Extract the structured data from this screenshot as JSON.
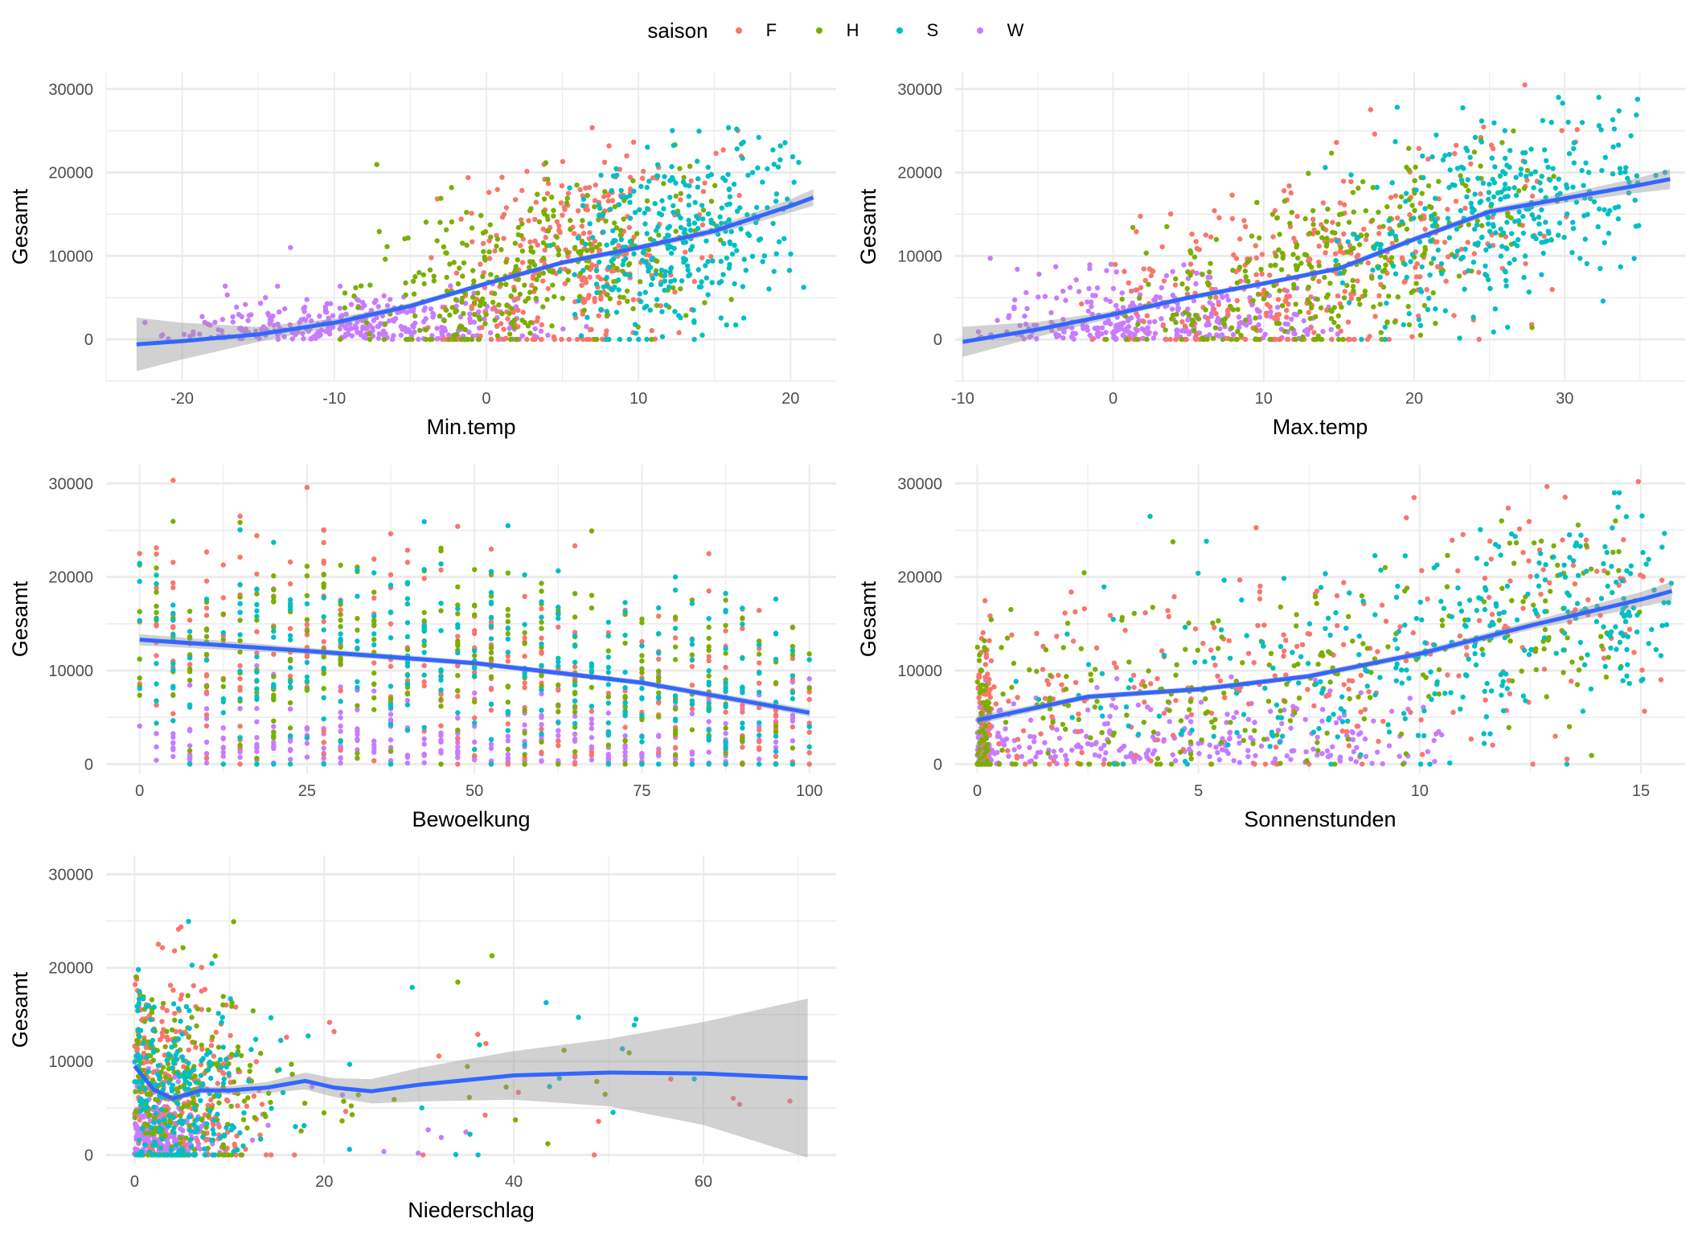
{
  "legend": {
    "title": "saison",
    "items": [
      {
        "key": "F",
        "label": "F",
        "color": "#F8766D"
      },
      {
        "key": "H",
        "label": "H",
        "color": "#7CAE00"
      },
      {
        "key": "S",
        "label": "S",
        "color": "#00BFC4"
      },
      {
        "key": "W",
        "label": "W",
        "color": "#C77CFF"
      }
    ],
    "placement": "top"
  },
  "colors": {
    "smooth_line": "#3366FF",
    "ribbon": "#999999",
    "grid": "#EBEBEB"
  },
  "chart_data": [
    {
      "type": "scatter",
      "title": "",
      "xlabel": "Min.temp",
      "ylabel": "Gesamt",
      "xlim": [
        -25,
        23
      ],
      "ylim": [
        -5000,
        32000
      ],
      "xticks": [
        -20,
        -10,
        0,
        10,
        20
      ],
      "yticks": [
        0,
        10000,
        20000,
        30000
      ],
      "grid": true,
      "smooth": {
        "x": [
          -23,
          -20,
          -15,
          -10,
          -5,
          0,
          5,
          10,
          15,
          20,
          21.5
        ],
        "y": [
          -600,
          -200,
          600,
          2000,
          4000,
          6700,
          9200,
          11000,
          13000,
          16000,
          17000
        ],
        "ci_half_width": [
          3200,
          2200,
          900,
          500,
          350,
          300,
          300,
          350,
          450,
          800,
          1000
        ]
      },
      "series_summary": {
        "W": {
          "x_range": [
            -23,
            7
          ],
          "y_typical": [
            0,
            11000
          ]
        },
        "F": {
          "x_range": [
            -5,
            17
          ],
          "y_typical": [
            0,
            30500
          ]
        },
        "H": {
          "x_range": [
            -11,
            17
          ],
          "y_typical": [
            0,
            26000
          ]
        },
        "S": {
          "x_range": [
            4,
            21.5
          ],
          "y_typical": [
            500,
            29000
          ]
        }
      }
    },
    {
      "type": "scatter",
      "title": "",
      "xlabel": "Max.temp",
      "ylabel": "Gesamt",
      "xlim": [
        -10.5,
        38
      ],
      "ylim": [
        -5000,
        32000
      ],
      "xticks": [
        -10,
        0,
        10,
        20,
        30
      ],
      "yticks": [
        0,
        10000,
        20000,
        30000
      ],
      "grid": true,
      "smooth": {
        "x": [
          -10,
          -5,
          0,
          5,
          10,
          15,
          20,
          25,
          30,
          35,
          37
        ],
        "y": [
          -300,
          1200,
          3000,
          5000,
          6700,
          8500,
          12000,
          15300,
          16900,
          18500,
          19200
        ],
        "ci_half_width": [
          1800,
          900,
          400,
          300,
          300,
          300,
          350,
          400,
          550,
          900,
          1200
        ]
      },
      "series_summary": {
        "W": {
          "x_range": [
            -10,
            16
          ],
          "y_typical": [
            0,
            13500
          ]
        },
        "F": {
          "x_range": [
            -3,
            32
          ],
          "y_typical": [
            0,
            30500
          ]
        },
        "H": {
          "x_range": [
            -2,
            30
          ],
          "y_typical": [
            0,
            25500
          ]
        },
        "S": {
          "x_range": [
            14,
            37
          ],
          "y_typical": [
            500,
            29000
          ]
        }
      }
    },
    {
      "type": "scatter",
      "title": "",
      "xlabel": "Bewoelkung",
      "ylabel": "Gesamt",
      "xlim": [
        -5,
        104
      ],
      "ylim": [
        -1000,
        32000
      ],
      "xticks": [
        0,
        25,
        50,
        75,
        100
      ],
      "yticks": [
        0,
        10000,
        20000,
        30000
      ],
      "grid": true,
      "smooth": {
        "x": [
          0,
          25,
          50,
          75,
          100
        ],
        "y": [
          13300,
          12100,
          10800,
          8700,
          5500
        ],
        "ci_half_width": [
          600,
          350,
          300,
          300,
          400
        ]
      },
      "series_summary": {
        "W": {
          "x_range": [
            0,
            100
          ],
          "y_typical": [
            0,
            15000
          ]
        },
        "F": {
          "x_range": [
            0,
            100
          ],
          "y_typical": [
            0,
            30500
          ]
        },
        "H": {
          "x_range": [
            0,
            100
          ],
          "y_typical": [
            0,
            26000
          ]
        },
        "S": {
          "x_range": [
            0,
            100
          ],
          "y_typical": [
            0,
            29000
          ]
        }
      }
    },
    {
      "type": "scatter",
      "title": "",
      "xlabel": "Sonnenstunden",
      "ylabel": "Gesamt",
      "xlim": [
        -0.5,
        16
      ],
      "ylim": [
        -1000,
        32000
      ],
      "xticks": [
        0,
        5,
        10,
        15
      ],
      "yticks": [
        0,
        10000,
        20000,
        30000
      ],
      "grid": true,
      "smooth": {
        "x": [
          0,
          2.5,
          5,
          7.5,
          10,
          12.5,
          15,
          15.7
        ],
        "y": [
          4700,
          7200,
          8000,
          9400,
          11800,
          14800,
          17600,
          18500
        ],
        "ci_half_width": [
          450,
          300,
          300,
          300,
          350,
          450,
          800,
          1000
        ]
      },
      "series_summary": {
        "W": {
          "x_range": [
            0,
            10.5
          ],
          "y_typical": [
            0,
            13500
          ]
        },
        "F": {
          "x_range": [
            0,
            15.5
          ],
          "y_typical": [
            0,
            30500
          ]
        },
        "H": {
          "x_range": [
            0,
            15
          ],
          "y_typical": [
            0,
            26000
          ]
        },
        "S": {
          "x_range": [
            0,
            15.7
          ],
          "y_typical": [
            500,
            29000
          ]
        }
      }
    },
    {
      "type": "scatter",
      "title": "",
      "xlabel": "Niederschlag",
      "ylabel": "Gesamt",
      "xlim": [
        -3,
        74
      ],
      "ylim": [
        -1000,
        32000
      ],
      "xticks": [
        0,
        20,
        40,
        60
      ],
      "yticks": [
        0,
        10000,
        20000,
        30000
      ],
      "grid": true,
      "smooth": {
        "x": [
          0,
          2,
          4,
          7,
          10,
          14,
          18,
          21,
          25,
          30,
          40,
          50,
          60,
          71
        ],
        "y": [
          9500,
          7000,
          6000,
          6900,
          6900,
          7200,
          7900,
          7200,
          6800,
          7500,
          8500,
          8800,
          8700,
          8200
        ],
        "ci_half_width": [
          400,
          300,
          300,
          350,
          450,
          600,
          900,
          1000,
          1300,
          1800,
          2600,
          3600,
          5500,
          8500
        ]
      },
      "series_summary": {
        "W": {
          "x_range": [
            0,
            35
          ],
          "y_typical": [
            0,
            13500
          ]
        },
        "F": {
          "x_range": [
            0,
            71
          ],
          "y_typical": [
            0,
            30500
          ]
        },
        "H": {
          "x_range": [
            0,
            57
          ],
          "y_typical": [
            0,
            26000
          ]
        },
        "S": {
          "x_range": [
            0,
            62
          ],
          "y_typical": [
            0,
            29000
          ]
        }
      }
    }
  ]
}
